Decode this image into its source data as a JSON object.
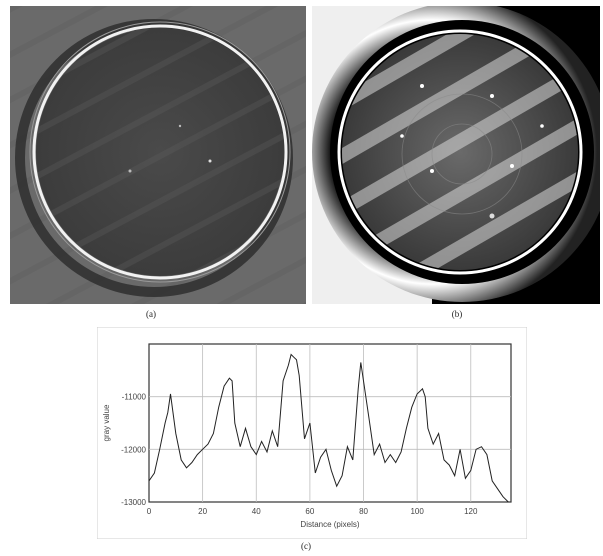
{
  "figure": {
    "captions": {
      "a": "(a)",
      "b": "(b)",
      "c": "(c)"
    }
  },
  "chart_data": {
    "type": "line",
    "title": "",
    "xlabel": "Distance (pixels)",
    "ylabel": "gray value",
    "xlim": [
      0,
      135
    ],
    "ylim": [
      -13000,
      -10000
    ],
    "x_ticks": [
      0,
      20,
      40,
      60,
      80,
      100,
      120
    ],
    "y_ticks": [
      -11000,
      -12000,
      -13000
    ],
    "grid": true,
    "series": [
      {
        "x": [
          0,
          2,
          4,
          6,
          7,
          8,
          10,
          12,
          14,
          16,
          18,
          20,
          22,
          24,
          26,
          28,
          30,
          31,
          32,
          34,
          36,
          38,
          40,
          42,
          44,
          46,
          48,
          50,
          52,
          53,
          54,
          55,
          56,
          58,
          60,
          62,
          64,
          66,
          68,
          70,
          72,
          74,
          76,
          78,
          79,
          80,
          82,
          84,
          86,
          88,
          90,
          92,
          94,
          96,
          98,
          100,
          102,
          103,
          104,
          106,
          108,
          110,
          112,
          114,
          116,
          118,
          120,
          122,
          124,
          126,
          128,
          130,
          132,
          134
        ],
        "y": [
          -12600,
          -12450,
          -12000,
          -11500,
          -11300,
          -10950,
          -11700,
          -12200,
          -12350,
          -12250,
          -12100,
          -12000,
          -11900,
          -11700,
          -11200,
          -10800,
          -10650,
          -10700,
          -11500,
          -11950,
          -11600,
          -11950,
          -12100,
          -11850,
          -12050,
          -11650,
          -11950,
          -10700,
          -10400,
          -10200,
          -10250,
          -10300,
          -10600,
          -11800,
          -11500,
          -12450,
          -12150,
          -12000,
          -12400,
          -12700,
          -12500,
          -11950,
          -12200,
          -10850,
          -10350,
          -10700,
          -11400,
          -12100,
          -11900,
          -12250,
          -12100,
          -12250,
          -12050,
          -11600,
          -11200,
          -10950,
          -10850,
          -11000,
          -11600,
          -11900,
          -11700,
          -12200,
          -12300,
          -12500,
          -12000,
          -12550,
          -12400,
          -12000,
          -11950,
          -12100,
          -12600,
          -12750,
          -12900,
          -13000
        ]
      }
    ]
  }
}
